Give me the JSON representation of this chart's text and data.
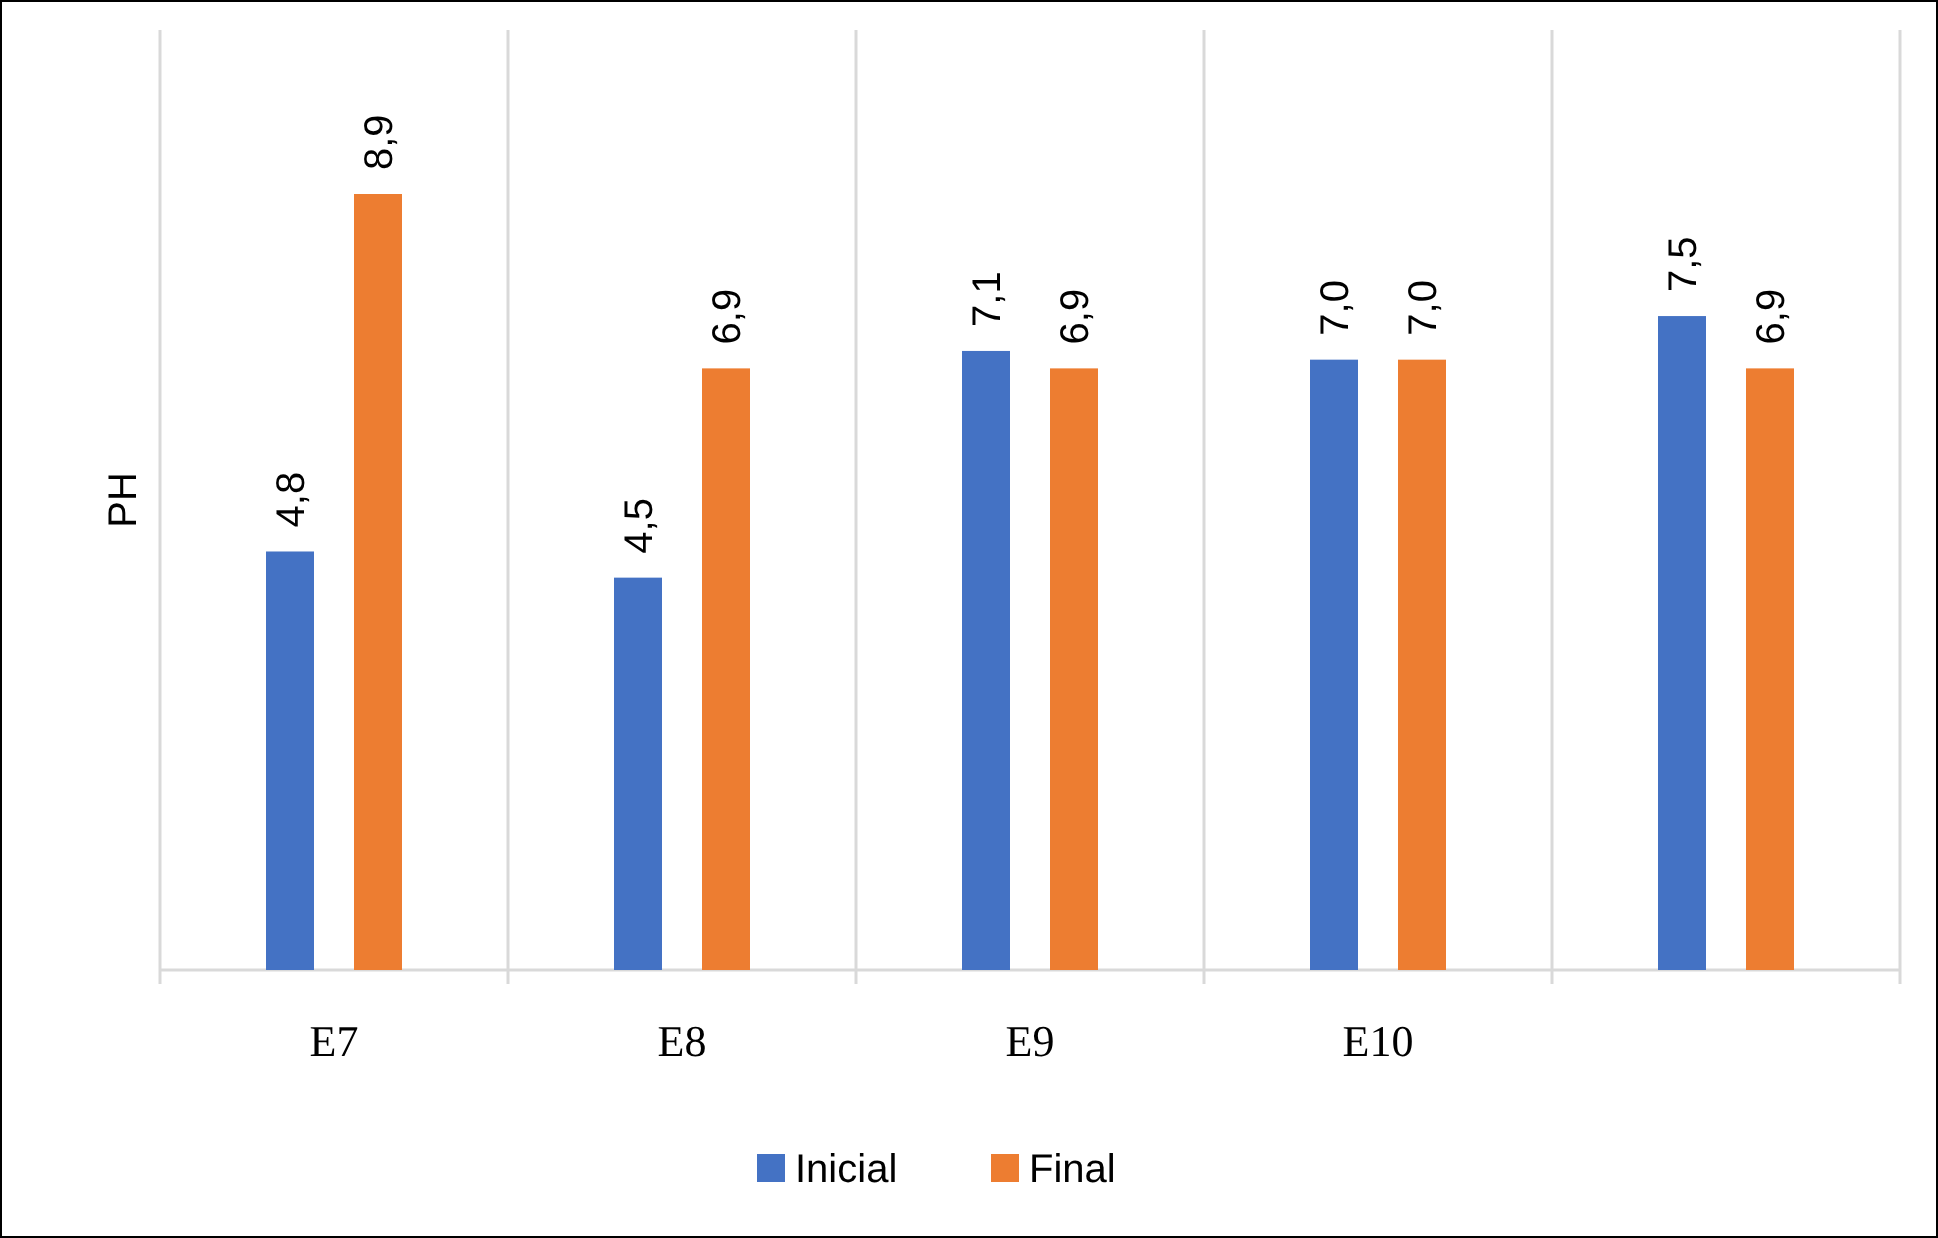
{
  "chart_data": {
    "type": "bar",
    "ylabel": "PH",
    "categories": [
      "E7",
      "E8",
      "E9",
      "E10",
      null
    ],
    "series": [
      {
        "name": "Inicial",
        "color": "#4472c4",
        "values": [
          4.8,
          4.5,
          7.1,
          7.0,
          7.5
        ],
        "value_labels": [
          "4,8",
          "4,5",
          "7,1",
          "7,0",
          "7,5"
        ]
      },
      {
        "name": "Final",
        "color": "#ed7d31",
        "values": [
          8.9,
          6.9,
          6.9,
          7.0,
          6.9
        ],
        "value_labels": [
          "8,9",
          "6,9",
          "6,9",
          "7,0",
          "6,9"
        ]
      }
    ],
    "grid": "x",
    "legend": "bottom"
  }
}
